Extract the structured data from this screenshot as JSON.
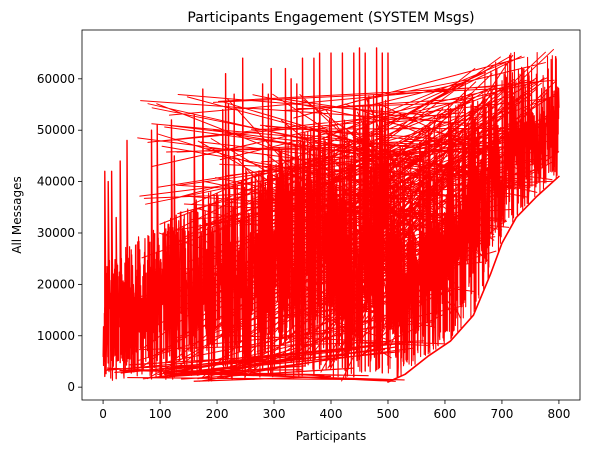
{
  "chart_data": {
    "type": "line",
    "title": "Participants Engagement (SYSTEM Msgs)",
    "xlabel": "Participants",
    "ylabel": "All Messages",
    "xlim": [
      -37,
      837
    ],
    "ylim": [
      -2500,
      69500
    ],
    "x_ticks": [
      0,
      100,
      200,
      300,
      400,
      500,
      600,
      700,
      800
    ],
    "y_ticks": [
      0,
      10000,
      20000,
      30000,
      40000,
      50000,
      60000
    ],
    "grid": false,
    "legend": "none",
    "series_color": "#ff0000",
    "series": [
      {
        "x_range": [
          0,
          800
        ],
        "y_range": [
          500,
          66000
        ],
        "spike_x": [
          3,
          9,
          15,
          23,
          30,
          42,
          85,
          95,
          120,
          125,
          160,
          175,
          210,
          215,
          220,
          230,
          245,
          280,
          290,
          295,
          320,
          330,
          340,
          350,
          370,
          380,
          400,
          420,
          440,
          450,
          460,
          480,
          490,
          500
        ],
        "spike_y": [
          42000,
          40000,
          42000,
          33000,
          44000,
          48000,
          50000,
          51000,
          52000,
          45000,
          53000,
          58000,
          54000,
          61000,
          55000,
          57000,
          64000,
          59000,
          57000,
          62000,
          62000,
          60000,
          59000,
          64000,
          64000,
          65000,
          65000,
          65000,
          65000,
          66000,
          65000,
          66000,
          65000,
          65000
        ],
        "upper_right_curve": [
          [
            550,
            48000
          ],
          [
            600,
            56000
          ],
          [
            650,
            62000
          ],
          [
            700,
            65000
          ],
          [
            720,
            66000
          ],
          [
            800,
            66000
          ]
        ],
        "lower_right_curve": [
          [
            500,
            1000
          ],
          [
            530,
            2500
          ],
          [
            570,
            6000
          ],
          [
            610,
            9000
          ],
          [
            650,
            14000
          ],
          [
            680,
            22000
          ],
          [
            700,
            28000
          ],
          [
            725,
            33000
          ],
          [
            760,
            37000
          ],
          [
            800,
            41000
          ]
        ]
      }
    ]
  }
}
